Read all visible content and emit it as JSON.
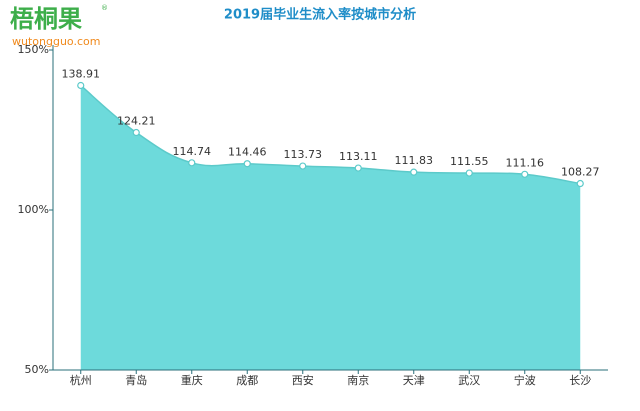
{
  "chart_data": {
    "type": "area",
    "title": "2019届毕业生流入率按城市分析",
    "watermark": {
      "brand": "梧桐果",
      "site": "wutongguo.com",
      "mark": "®"
    },
    "categories": [
      "杭州",
      "青岛",
      "重庆",
      "成都",
      "西安",
      "南京",
      "天津",
      "武汉",
      "宁波",
      "长沙"
    ],
    "values": [
      138.91,
      124.21,
      114.74,
      114.46,
      113.73,
      113.11,
      111.83,
      111.55,
      111.16,
      108.27
    ],
    "color": "#6ddadb",
    "line_color": "#5ccaca",
    "ylim": [
      50,
      150
    ],
    "yticks": [
      {
        "value": 50,
        "label": "50%"
      },
      {
        "value": 100,
        "label": "100%"
      },
      {
        "value": 150,
        "label": "150%"
      }
    ],
    "grid": false
  }
}
